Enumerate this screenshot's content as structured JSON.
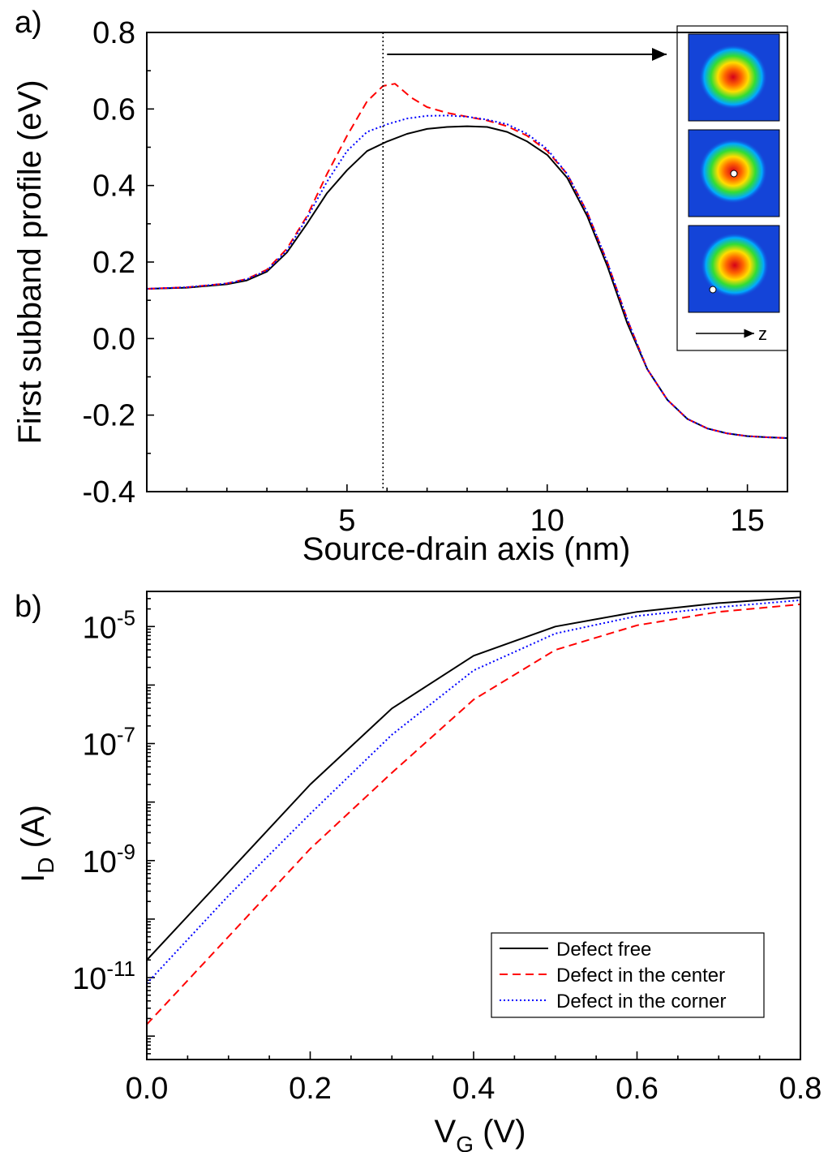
{
  "chart_data": [
    {
      "panel": "a)",
      "type": "line",
      "title": "",
      "xlabel": "Source-drain axis (nm)",
      "ylabel": "First subband profile (eV)",
      "xlim": [
        0,
        16
      ],
      "ylim": [
        -0.4,
        0.8
      ],
      "xticks": [
        5,
        10,
        15
      ],
      "yticks": [
        -0.4,
        -0.2,
        0.0,
        0.2,
        0.4,
        0.6,
        0.8
      ],
      "ytick_labels": [
        "-0.4",
        "-0.2",
        "0.0",
        "0.2",
        "0.4",
        "0.6",
        "0.8"
      ],
      "marker_line_x": 5.9,
      "inset_axis_label": "z",
      "series": [
        {
          "color": "#000000",
          "style": "solid",
          "x": [
            0,
            1,
            2,
            2.5,
            3,
            3.5,
            4,
            4.5,
            5,
            5.5,
            6,
            6.5,
            7,
            7.5,
            8,
            8.5,
            9,
            9.5,
            10,
            10.5,
            11,
            11.5,
            12,
            12.5,
            13,
            13.5,
            14,
            14.5,
            15,
            15.5,
            16
          ],
          "values": [
            0.13,
            0.133,
            0.142,
            0.152,
            0.175,
            0.225,
            0.3,
            0.38,
            0.44,
            0.49,
            0.515,
            0.535,
            0.548,
            0.553,
            0.555,
            0.553,
            0.54,
            0.515,
            0.48,
            0.42,
            0.32,
            0.19,
            0.04,
            -0.08,
            -0.16,
            -0.21,
            -0.235,
            -0.248,
            -0.255,
            -0.258,
            -0.26
          ]
        },
        {
          "color": "#ff0000",
          "style": "dashed",
          "x": [
            0,
            1,
            2,
            2.5,
            3,
            3.5,
            4,
            4.5,
            5,
            5.5,
            5.9,
            6.2,
            6.6,
            7,
            7.5,
            8,
            8.5,
            9,
            9.5,
            10,
            10.5,
            11,
            11.5,
            12,
            12.5,
            13,
            13.5,
            14,
            14.5,
            15,
            15.5,
            16
          ],
          "values": [
            0.13,
            0.134,
            0.144,
            0.156,
            0.18,
            0.235,
            0.32,
            0.43,
            0.53,
            0.62,
            0.66,
            0.666,
            0.63,
            0.605,
            0.59,
            0.58,
            0.57,
            0.555,
            0.53,
            0.49,
            0.43,
            0.33,
            0.2,
            0.05,
            -0.08,
            -0.16,
            -0.21,
            -0.235,
            -0.248,
            -0.255,
            -0.258,
            -0.26
          ]
        },
        {
          "color": "#0000ff",
          "style": "dotted",
          "x": [
            0,
            1,
            2,
            2.5,
            3,
            3.5,
            4,
            4.5,
            5,
            5.5,
            6,
            6.5,
            7,
            7.5,
            8,
            8.5,
            9,
            9.5,
            10,
            10.5,
            11,
            11.5,
            12,
            12.5,
            13,
            13.5,
            14,
            14.5,
            15,
            15.5,
            16
          ],
          "values": [
            0.13,
            0.134,
            0.144,
            0.155,
            0.178,
            0.23,
            0.315,
            0.41,
            0.49,
            0.54,
            0.56,
            0.575,
            0.582,
            0.583,
            0.58,
            0.572,
            0.56,
            0.535,
            0.495,
            0.43,
            0.33,
            0.2,
            0.05,
            -0.08,
            -0.16,
            -0.21,
            -0.235,
            -0.248,
            -0.255,
            -0.258,
            -0.26
          ]
        }
      ]
    },
    {
      "panel": "b)",
      "type": "line",
      "title": "",
      "xlabel": "V",
      "xlabel_sub": "G",
      "xlabel_unit": " (V)",
      "ylabel": "I",
      "ylabel_sub": "D",
      "ylabel_unit": " (A)",
      "xlim": [
        0,
        0.8
      ],
      "ylim_log10": [
        -12.4,
        -4.4
      ],
      "yscale": "log",
      "xticks": [
        0.0,
        0.2,
        0.4,
        0.6,
        0.8
      ],
      "xtick_labels": [
        "0.0",
        "0.2",
        "0.4",
        "0.6",
        "0.8"
      ],
      "yticks_exp": [
        -11,
        -9,
        -7,
        -5
      ],
      "ytick_base": "10",
      "legend_position": "lower-right",
      "series": [
        {
          "name": "Defect free",
          "color": "#000000",
          "style": "solid",
          "x": [
            0.0,
            0.1,
            0.2,
            0.3,
            0.4,
            0.5,
            0.6,
            0.7,
            0.8
          ],
          "log10_values": [
            -10.7,
            -9.2,
            -7.7,
            -6.4,
            -5.5,
            -5.0,
            -4.75,
            -4.6,
            -4.5
          ]
        },
        {
          "name": "Defect in the center",
          "color": "#ff0000",
          "style": "dashed",
          "x": [
            0.0,
            0.1,
            0.2,
            0.3,
            0.4,
            0.5,
            0.6,
            0.7,
            0.8
          ],
          "log10_values": [
            -11.8,
            -10.3,
            -8.8,
            -7.5,
            -6.25,
            -5.4,
            -4.98,
            -4.75,
            -4.62
          ]
        },
        {
          "name": "Defect in the corner",
          "color": "#0000ff",
          "style": "dotted",
          "x": [
            0.0,
            0.1,
            0.2,
            0.3,
            0.4,
            0.5,
            0.6,
            0.7,
            0.8
          ],
          "log10_values": [
            -11.1,
            -9.6,
            -8.2,
            -6.85,
            -5.75,
            -5.12,
            -4.82,
            -4.67,
            -4.55
          ]
        }
      ]
    }
  ]
}
